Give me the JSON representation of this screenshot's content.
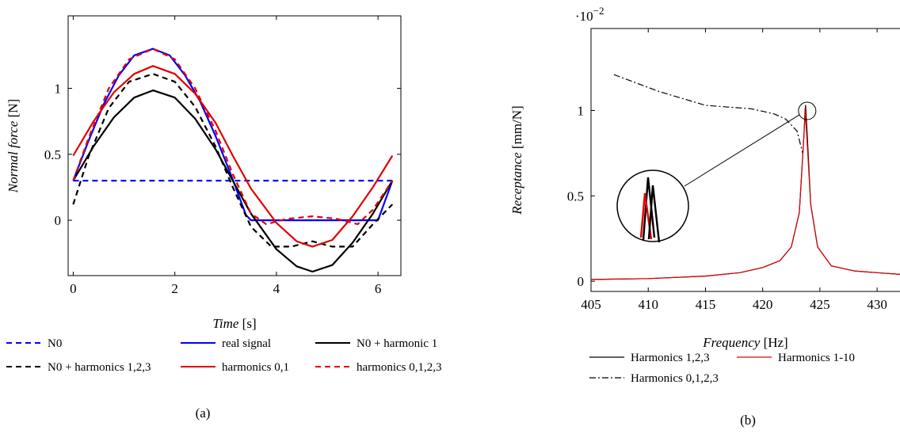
{
  "chart_data": [
    {
      "type": "line",
      "caption": "(a)",
      "xlabel": "Time",
      "xlabel_unit": "[s]",
      "ylabel": "Normal force",
      "ylabel_unit": "[N]",
      "xlim": [
        -0.1,
        6.45
      ],
      "ylim": [
        -0.42,
        1.55
      ],
      "xticks": [
        0,
        2,
        4,
        6
      ],
      "yticks": [
        0,
        0.5,
        1
      ],
      "grid": false,
      "legend_position": "below",
      "series": [
        {
          "name": "N0",
          "color": "#0000ff",
          "style": "dashed",
          "x": [
            0,
            6.283
          ],
          "y": [
            0.3,
            0.3
          ]
        },
        {
          "name": "real signal",
          "color": "#0000ff",
          "style": "solid",
          "x": [
            0,
            0.3,
            0.6,
            0.9,
            1.2,
            1.57,
            1.9,
            2.2,
            2.5,
            2.8,
            3.1,
            3.4,
            3.5,
            4.0,
            5.0,
            6.0,
            6.283
          ],
          "y": [
            0.3,
            0.6,
            0.88,
            1.1,
            1.25,
            1.3,
            1.25,
            1.1,
            0.9,
            0.64,
            0.35,
            0.04,
            0.0,
            0.0,
            0.0,
            0.0,
            0.3
          ]
        },
        {
          "name": "N0 + harmonic 1",
          "color": "#000000",
          "style": "solid",
          "x": [
            0,
            0.4,
            0.8,
            1.2,
            1.57,
            2.0,
            2.4,
            2.8,
            3.14,
            3.5,
            4.0,
            4.4,
            4.71,
            5.1,
            5.5,
            5.9,
            6.283
          ],
          "y": [
            0.3,
            0.56,
            0.78,
            0.93,
            0.985,
            0.93,
            0.77,
            0.54,
            0.3,
            0.05,
            -0.22,
            -0.35,
            -0.39,
            -0.34,
            -0.17,
            0.05,
            0.3
          ]
        },
        {
          "name": "N0 + harmonics 1,2,3",
          "color": "#000000",
          "style": "dashed",
          "x": [
            0,
            0.3,
            0.7,
            1.1,
            1.57,
            2.0,
            2.4,
            2.8,
            3.14,
            3.5,
            3.9,
            4.3,
            4.71,
            5.1,
            5.5,
            5.9,
            6.283
          ],
          "y": [
            0.12,
            0.48,
            0.85,
            1.05,
            1.11,
            1.05,
            0.86,
            0.56,
            0.25,
            -0.05,
            -0.2,
            -0.2,
            -0.16,
            -0.2,
            -0.2,
            -0.03,
            0.12
          ]
        },
        {
          "name": "harmonics 0,1",
          "color": "#e00000",
          "style": "solid",
          "x": [
            0,
            0.4,
            0.8,
            1.2,
            1.57,
            2.0,
            2.4,
            2.8,
            3.14,
            3.5,
            4.0,
            4.4,
            4.71,
            5.1,
            5.5,
            5.9,
            6.283
          ],
          "y": [
            0.49,
            0.75,
            0.97,
            1.11,
            1.17,
            1.11,
            0.96,
            0.74,
            0.49,
            0.24,
            -0.02,
            -0.16,
            -0.2,
            -0.15,
            0.03,
            0.25,
            0.49
          ]
        },
        {
          "name": "harmonics 0,1,2,3",
          "color": "#e00000",
          "style": "dashed",
          "x": [
            0,
            0.3,
            0.7,
            1.1,
            1.57,
            2.0,
            2.4,
            2.8,
            3.14,
            3.5,
            3.8,
            4.2,
            4.71,
            5.2,
            5.6,
            5.9,
            6.283
          ],
          "y": [
            0.3,
            0.62,
            1.0,
            1.22,
            1.3,
            1.22,
            1.0,
            0.68,
            0.35,
            0.05,
            -0.03,
            0.01,
            0.03,
            0.01,
            -0.03,
            0.08,
            0.3
          ]
        }
      ]
    },
    {
      "type": "line",
      "caption": "(b)",
      "xlabel": "Frequency",
      "xlabel_unit": "[Hz]",
      "ylabel": "Receptance",
      "ylabel_unit": "[mm/N]",
      "y_scale_label": "·10",
      "y_scale_exponent": "−2",
      "xlim": [
        405,
        432
      ],
      "ylim": [
        -0.0006,
        0.0148
      ],
      "xticks": [
        405,
        410,
        415,
        420,
        425,
        430
      ],
      "yticks": [
        0,
        0.005,
        0.01
      ],
      "ytick_labels": [
        "0",
        "0.5",
        "1"
      ],
      "grid": false,
      "legend_position": "below",
      "inset": "magnified view of the resonance peak near 424 Hz",
      "series": [
        {
          "name": "Harmonics 1,2,3",
          "color": "#000000",
          "style": "solid",
          "x": [
            405,
            410,
            415,
            418,
            420,
            421.5,
            422.5,
            423.2,
            423.6,
            423.75,
            423.9,
            424.2,
            424.8,
            426,
            428,
            430,
            432
          ],
          "y": [
            0.0001,
            0.00015,
            0.0003,
            0.0005,
            0.0008,
            0.0012,
            0.002,
            0.004,
            0.0085,
            0.0103,
            0.0085,
            0.0045,
            0.002,
            0.0009,
            0.0006,
            0.0005,
            0.0004
          ]
        },
        {
          "name": "Harmonics 1-10",
          "color": "#e00000",
          "style": "solid",
          "x": [
            405,
            410,
            415,
            418,
            420,
            421.5,
            422.5,
            423.2,
            423.6,
            423.7,
            423.85,
            424.2,
            424.8,
            426,
            428,
            430,
            432
          ],
          "y": [
            0.0001,
            0.00015,
            0.0003,
            0.0005,
            0.0008,
            0.0012,
            0.002,
            0.004,
            0.0085,
            0.0101,
            0.0085,
            0.0045,
            0.002,
            0.0009,
            0.0006,
            0.0005,
            0.0004
          ]
        },
        {
          "name": "Harmonics 0,1,2,3",
          "color": "#000000",
          "style": "dashdot",
          "x": [
            407,
            409,
            411,
            413,
            415,
            417,
            419,
            421,
            422,
            423,
            423.5
          ],
          "y": [
            0.0121,
            0.0116,
            0.0111,
            0.0107,
            0.0103,
            0.0102,
            0.0101,
            0.0098,
            0.0095,
            0.0088,
            0.0075
          ]
        }
      ]
    }
  ]
}
